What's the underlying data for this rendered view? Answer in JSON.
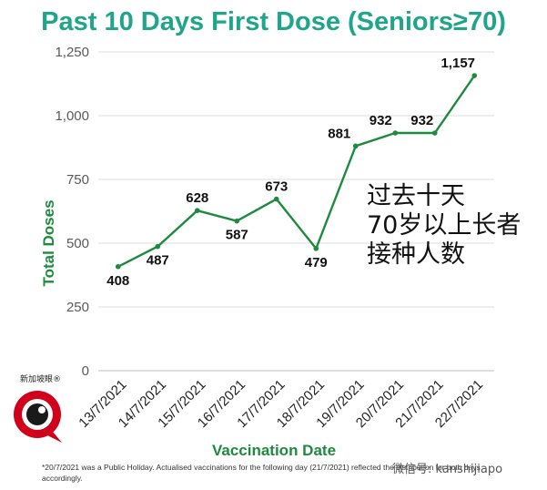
{
  "chart_data": {
    "type": "line",
    "title": "Past 10 Days First Dose (Seniors≥70)",
    "xlabel": "Vaccination Date",
    "ylabel": "Total Doses",
    "categories": [
      "13/7/2021",
      "14/7/2021",
      "15/7/2021",
      "16/7/2021",
      "17/7/2021",
      "18/7/2021",
      "19/7/2021",
      "20/7/2021",
      "21/7/2021",
      "22/7/2021"
    ],
    "values": [
      408,
      487,
      628,
      587,
      673,
      479,
      881,
      932,
      932,
      1157
    ],
    "value_labels": [
      "408",
      "487",
      "628",
      "587",
      "673",
      "479",
      "881",
      "932",
      "932",
      "1,157"
    ],
    "yticks": [
      "0",
      "250",
      "500",
      "750",
      "1,000",
      "1,250"
    ],
    "ytick_values": [
      0,
      250,
      500,
      750,
      1000,
      1250
    ],
    "ylim": [
      0,
      1250
    ],
    "grid": true,
    "colors": {
      "line": "#1e8a3e",
      "title": "#1fa58a",
      "axis_label": "#1e8a3e"
    }
  },
  "annotation": [
    "过去十天",
    "70岁以上长者",
    "接种人数"
  ],
  "footnote": "*20/7/2021 was a Public Holiday. Actualised vaccinations for the following day (21/7/2021) reflected the distribution for both days accordingly.",
  "logo_text": "新加坡眼®",
  "watermark": "微信号: kanshijiapo"
}
